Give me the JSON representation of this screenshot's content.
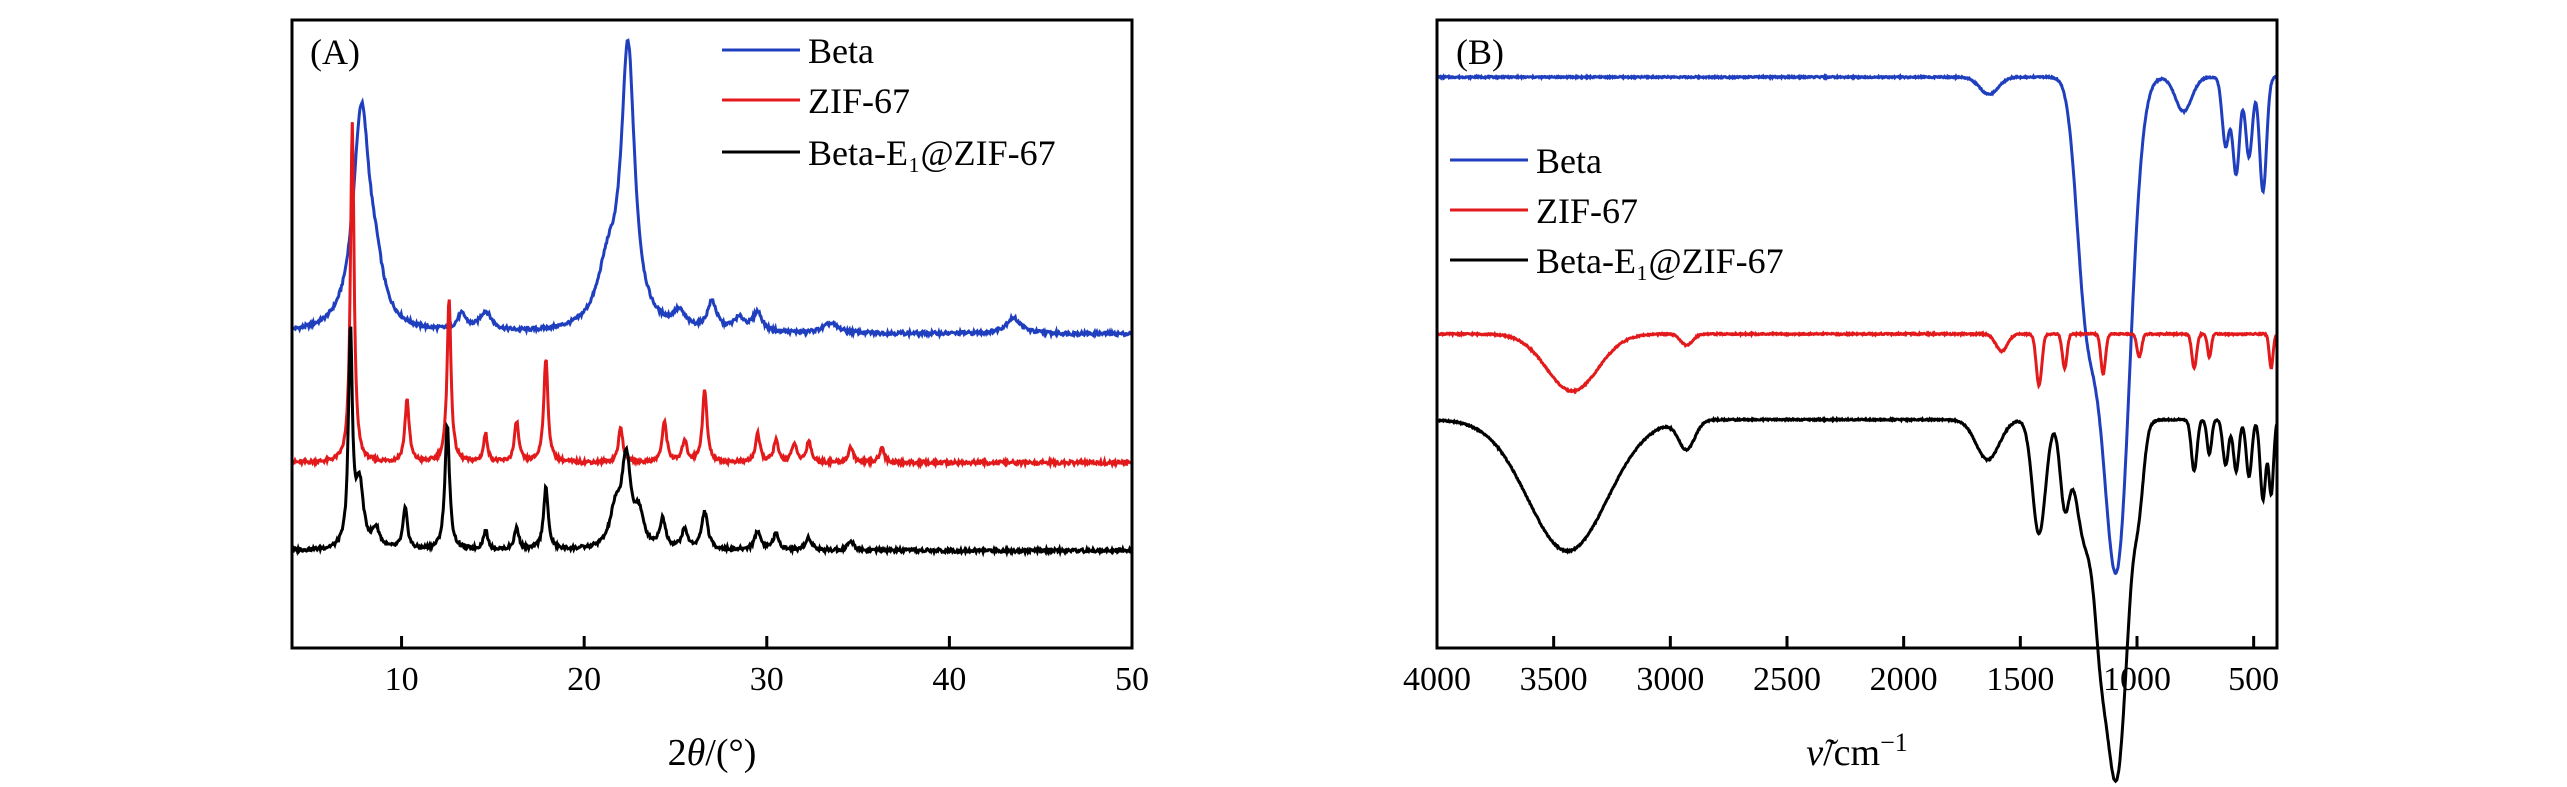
{
  "chart_data": [
    {
      "panel": "(A)",
      "type": "line",
      "title": "",
      "xlabel_prefix": "2",
      "xlabel_symbol": "θ",
      "xlabel_suffix": "/(°)",
      "ylabel": "",
      "xlim": [
        4,
        50
      ],
      "xticks": [
        10,
        20,
        30,
        40,
        50
      ],
      "xtick_labels": [
        "10",
        "20",
        "30",
        "40",
        "50"
      ],
      "y_units": "intensity (a.u., stacked)",
      "grid": false,
      "legend_position": "top-right",
      "series": [
        {
          "name": "Beta",
          "color": "#1f3fbf",
          "baseline": 100,
          "peaks": [
            [
              7.8,
              70,
              0.55
            ],
            [
              8.6,
              12,
              0.5
            ],
            [
              13.3,
              5,
              0.3
            ],
            [
              14.6,
              6,
              0.4
            ],
            [
              21.3,
              18,
              0.7
            ],
            [
              22.4,
              88,
              0.45
            ],
            [
              25.2,
              5,
              0.4
            ],
            [
              27.0,
              9,
              0.3
            ],
            [
              28.5,
              4,
              0.4
            ],
            [
              29.5,
              6,
              0.3
            ],
            [
              33.5,
              3,
              0.5
            ],
            [
              43.5,
              5,
              0.5
            ]
          ]
        },
        {
          "name": "ZIF-67",
          "color": "#e31a1c",
          "baseline": 59,
          "peaks": [
            [
              7.3,
              108,
              0.12
            ],
            [
              10.3,
              20,
              0.14
            ],
            [
              12.6,
              52,
              0.13
            ],
            [
              14.6,
              9,
              0.13
            ],
            [
              16.3,
              13,
              0.14
            ],
            [
              17.9,
              33,
              0.14
            ],
            [
              22.0,
              11,
              0.15
            ],
            [
              24.4,
              13,
              0.15
            ],
            [
              25.5,
              7,
              0.15
            ],
            [
              26.6,
              23,
              0.15
            ],
            [
              29.5,
              9,
              0.15
            ],
            [
              30.5,
              7,
              0.15
            ],
            [
              31.5,
              6,
              0.15
            ],
            [
              32.3,
              7,
              0.15
            ],
            [
              34.6,
              5,
              0.15
            ],
            [
              36.3,
              5,
              0.15
            ]
          ]
        },
        {
          "name": "Beta-E₁@ZIF-67",
          "color": "#000000",
          "baseline": 31,
          "peaks": [
            [
              7.2,
              68,
              0.13
            ],
            [
              7.7,
              20,
              0.25
            ],
            [
              8.6,
              6,
              0.25
            ],
            [
              10.2,
              13,
              0.15
            ],
            [
              12.5,
              40,
              0.15
            ],
            [
              14.6,
              6,
              0.15
            ],
            [
              16.3,
              7,
              0.15
            ],
            [
              17.9,
              20,
              0.15
            ],
            [
              21.7,
              11,
              0.35
            ],
            [
              22.3,
              28,
              0.3
            ],
            [
              23.0,
              10,
              0.3
            ],
            [
              24.3,
              9,
              0.2
            ],
            [
              25.5,
              6,
              0.2
            ],
            [
              26.6,
              12,
              0.2
            ],
            [
              29.5,
              6,
              0.2
            ],
            [
              30.5,
              5,
              0.2
            ],
            [
              32.3,
              4,
              0.2
            ],
            [
              34.6,
              3,
              0.2
            ]
          ]
        }
      ]
    },
    {
      "panel": "(B)",
      "type": "line",
      "title": "",
      "xlabel_symbol": "ν̃",
      "xlabel_suffix": "/cm",
      "xlabel_exponent": "−1",
      "ylabel": "",
      "xlim": [
        4000,
        400
      ],
      "xticks": [
        4000,
        3500,
        3000,
        2500,
        2000,
        1500,
        1000,
        500
      ],
      "xtick_labels": [
        "4000",
        "3500",
        "3000",
        "2500",
        "2000",
        "1500",
        "1000",
        "500"
      ],
      "y_units": "transmittance (a.u., stacked)",
      "grid": false,
      "legend_position": "upper-left",
      "series": [
        {
          "name": "Beta",
          "color": "#1f3fbf",
          "baseline": 100,
          "bands": [
            [
              1635,
              3,
              40
            ],
            [
              1225,
              30,
              40
            ],
            [
              1085,
              83,
              55
            ],
            [
              1170,
              20,
              45
            ],
            [
              800,
              6,
              35
            ],
            [
              620,
              12,
              15
            ],
            [
              575,
              17,
              15
            ],
            [
              520,
              14,
              15
            ],
            [
              460,
              20,
              15
            ]
          ]
        },
        {
          "name": "ZIF-67",
          "color": "#e31a1c",
          "baseline": 55,
          "bands": [
            [
              3420,
              10,
              110
            ],
            [
              2930,
              2,
              25
            ],
            [
              1580,
              3,
              25
            ],
            [
              1420,
              9,
              12
            ],
            [
              1310,
              6,
              10
            ],
            [
              1145,
              7,
              10
            ],
            [
              990,
              4,
              10
            ],
            [
              755,
              6,
              10
            ],
            [
              690,
              4,
              8
            ],
            [
              425,
              6,
              8
            ]
          ]
        },
        {
          "name": "Beta-E₁@ZIF-67",
          "color": "#000000",
          "baseline": 40,
          "bands": [
            [
              3440,
              23,
              170
            ],
            [
              2930,
              5,
              35
            ],
            [
              1640,
              7,
              50
            ],
            [
              1420,
              20,
              28
            ],
            [
              1310,
              14,
              20
            ],
            [
              1225,
              20,
              40
            ],
            [
              1160,
              15,
              25
            ],
            [
              1090,
              63,
              50
            ],
            [
              990,
              9,
              20
            ],
            [
              755,
              9,
              12
            ],
            [
              690,
              6,
              10
            ],
            [
              620,
              8,
              12
            ],
            [
              575,
              9,
              12
            ],
            [
              520,
              10,
              12
            ],
            [
              460,
              14,
              12
            ],
            [
              425,
              13,
              10
            ]
          ]
        }
      ]
    }
  ]
}
